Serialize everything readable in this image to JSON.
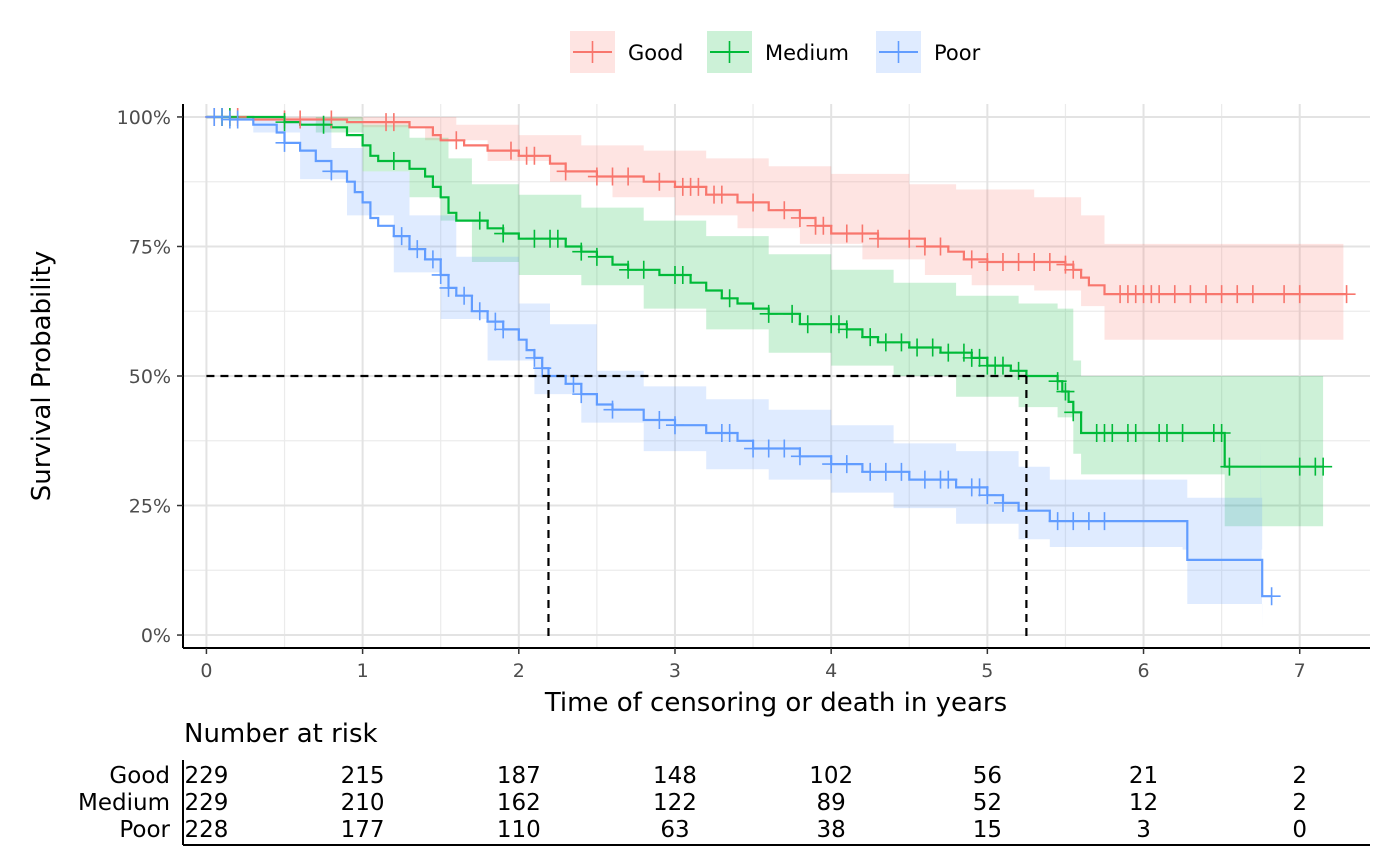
{
  "chart_data": {
    "type": "line",
    "subtype": "kaplan-meier survival curve with confidence bands and censor marks",
    "xlabel": "Time of censoring or death in years",
    "ylabel": "Survival Probability",
    "xlim": [
      -0.15,
      7.45
    ],
    "ylim": [
      -0.025,
      1.025
    ],
    "x_ticks": [
      0,
      1,
      2,
      3,
      4,
      5,
      6,
      7
    ],
    "x_tick_labels": [
      "0",
      "1",
      "2",
      "3",
      "4",
      "5",
      "6",
      "7"
    ],
    "y_ticks": [
      0,
      0.25,
      0.5,
      0.75,
      1.0
    ],
    "y_tick_labels": [
      "0%",
      "25%",
      "50%",
      "75%",
      "100%"
    ],
    "grid": true,
    "legend_position": "top",
    "median_lines": [
      {
        "x": 2.19,
        "y": 0.5
      },
      {
        "x": 5.25,
        "y": 0.5
      }
    ],
    "series": [
      {
        "name": "Good",
        "color": "#F8766D",
        "steps": [
          [
            0,
            1.0
          ],
          [
            0.3,
            0.995
          ],
          [
            0.9,
            0.99
          ],
          [
            1.3,
            0.98
          ],
          [
            1.45,
            0.965
          ],
          [
            1.5,
            0.955
          ],
          [
            1.65,
            0.945
          ],
          [
            1.8,
            0.935
          ],
          [
            2.0,
            0.925
          ],
          [
            2.2,
            0.91
          ],
          [
            2.3,
            0.895
          ],
          [
            2.5,
            0.885
          ],
          [
            2.8,
            0.875
          ],
          [
            3.0,
            0.865
          ],
          [
            3.2,
            0.85
          ],
          [
            3.4,
            0.835
          ],
          [
            3.6,
            0.82
          ],
          [
            3.8,
            0.805
          ],
          [
            3.9,
            0.79
          ],
          [
            4.0,
            0.775
          ],
          [
            4.3,
            0.765
          ],
          [
            4.6,
            0.75
          ],
          [
            4.75,
            0.74
          ],
          [
            4.85,
            0.725
          ],
          [
            5.0,
            0.72
          ],
          [
            5.5,
            0.715
          ],
          [
            5.55,
            0.705
          ],
          [
            5.6,
            0.69
          ],
          [
            5.65,
            0.675
          ],
          [
            5.75,
            0.658
          ],
          [
            7.3,
            0.658
          ]
        ],
        "upper": [
          [
            0,
            1.0
          ],
          [
            1.3,
            1.0
          ],
          [
            1.6,
            0.985
          ],
          [
            2.0,
            0.965
          ],
          [
            2.4,
            0.945
          ],
          [
            2.8,
            0.935
          ],
          [
            3.2,
            0.92
          ],
          [
            3.6,
            0.905
          ],
          [
            4.0,
            0.89
          ],
          [
            4.5,
            0.87
          ],
          [
            4.8,
            0.86
          ],
          [
            5.3,
            0.845
          ],
          [
            5.6,
            0.81
          ],
          [
            5.75,
            0.755
          ],
          [
            7.28,
            0.755
          ]
        ],
        "lower": [
          [
            0,
            1.0
          ],
          [
            0.5,
            0.995
          ],
          [
            1.0,
            0.98
          ],
          [
            1.4,
            0.955
          ],
          [
            1.8,
            0.915
          ],
          [
            2.2,
            0.875
          ],
          [
            2.6,
            0.845
          ],
          [
            3.0,
            0.81
          ],
          [
            3.4,
            0.785
          ],
          [
            3.8,
            0.755
          ],
          [
            4.2,
            0.725
          ],
          [
            4.6,
            0.695
          ],
          [
            4.9,
            0.675
          ],
          [
            5.3,
            0.665
          ],
          [
            5.6,
            0.635
          ],
          [
            5.75,
            0.57
          ],
          [
            7.28,
            0.57
          ]
        ],
        "censor_times": [
          0.05,
          0.1,
          0.15,
          0.2,
          0.5,
          0.6,
          0.8,
          1.15,
          1.2,
          1.6,
          1.95,
          2.05,
          2.1,
          2.3,
          2.5,
          2.6,
          2.7,
          2.9,
          3.05,
          3.1,
          3.15,
          3.25,
          3.3,
          3.5,
          3.7,
          3.8,
          3.9,
          3.95,
          4.1,
          4.2,
          4.3,
          4.5,
          4.6,
          4.7,
          4.9,
          5.0,
          5.1,
          5.2,
          5.3,
          5.4,
          5.5,
          5.55,
          5.85,
          5.9,
          5.95,
          6.0,
          6.05,
          6.1,
          6.2,
          6.3,
          6.4,
          6.5,
          6.6,
          6.7,
          6.9,
          7.0,
          7.3
        ],
        "risk_table": [
          229,
          215,
          187,
          148,
          102,
          56,
          21,
          2
        ]
      },
      {
        "name": "Medium",
        "color": "#00BA38",
        "steps": [
          [
            0,
            1.0
          ],
          [
            0.5,
            0.99
          ],
          [
            0.6,
            0.985
          ],
          [
            0.8,
            0.98
          ],
          [
            0.9,
            0.965
          ],
          [
            1.0,
            0.945
          ],
          [
            1.05,
            0.925
          ],
          [
            1.1,
            0.915
          ],
          [
            1.3,
            0.9
          ],
          [
            1.4,
            0.885
          ],
          [
            1.45,
            0.865
          ],
          [
            1.5,
            0.845
          ],
          [
            1.55,
            0.815
          ],
          [
            1.6,
            0.8
          ],
          [
            1.8,
            0.785
          ],
          [
            1.9,
            0.775
          ],
          [
            2.0,
            0.765
          ],
          [
            2.3,
            0.75
          ],
          [
            2.4,
            0.74
          ],
          [
            2.5,
            0.73
          ],
          [
            2.6,
            0.715
          ],
          [
            2.7,
            0.705
          ],
          [
            2.9,
            0.695
          ],
          [
            3.1,
            0.68
          ],
          [
            3.2,
            0.665
          ],
          [
            3.3,
            0.65
          ],
          [
            3.4,
            0.64
          ],
          [
            3.5,
            0.63
          ],
          [
            3.6,
            0.62
          ],
          [
            3.8,
            0.6
          ],
          [
            4.1,
            0.59
          ],
          [
            4.2,
            0.575
          ],
          [
            4.3,
            0.565
          ],
          [
            4.5,
            0.555
          ],
          [
            4.7,
            0.545
          ],
          [
            4.9,
            0.535
          ],
          [
            5.0,
            0.52
          ],
          [
            5.15,
            0.51
          ],
          [
            5.25,
            0.5
          ],
          [
            5.45,
            0.49
          ],
          [
            5.48,
            0.47
          ],
          [
            5.52,
            0.45
          ],
          [
            5.55,
            0.43
          ],
          [
            5.6,
            0.39
          ],
          [
            6.5,
            0.39
          ],
          [
            6.52,
            0.325
          ],
          [
            7.15,
            0.325
          ]
        ],
        "upper": [
          [
            0,
            1.0
          ],
          [
            0.8,
            1.0
          ],
          [
            1.0,
            0.985
          ],
          [
            1.3,
            0.96
          ],
          [
            1.55,
            0.92
          ],
          [
            1.7,
            0.87
          ],
          [
            2.0,
            0.85
          ],
          [
            2.4,
            0.825
          ],
          [
            2.8,
            0.8
          ],
          [
            3.2,
            0.77
          ],
          [
            3.6,
            0.735
          ],
          [
            4.0,
            0.705
          ],
          [
            4.4,
            0.68
          ],
          [
            4.8,
            0.655
          ],
          [
            5.2,
            0.64
          ],
          [
            5.45,
            0.63
          ],
          [
            5.55,
            0.53
          ],
          [
            5.6,
            0.5
          ],
          [
            7.15,
            0.5
          ]
        ],
        "lower": [
          [
            0,
            1.0
          ],
          [
            0.7,
            0.97
          ],
          [
            1.0,
            0.895
          ],
          [
            1.3,
            0.845
          ],
          [
            1.5,
            0.8
          ],
          [
            1.7,
            0.72
          ],
          [
            2.0,
            0.695
          ],
          [
            2.4,
            0.675
          ],
          [
            2.8,
            0.63
          ],
          [
            3.2,
            0.59
          ],
          [
            3.6,
            0.545
          ],
          [
            4.0,
            0.52
          ],
          [
            4.4,
            0.5
          ],
          [
            4.8,
            0.46
          ],
          [
            5.2,
            0.44
          ],
          [
            5.45,
            0.42
          ],
          [
            5.55,
            0.35
          ],
          [
            5.6,
            0.31
          ],
          [
            6.5,
            0.31
          ],
          [
            6.52,
            0.21
          ],
          [
            7.15,
            0.21
          ]
        ],
        "censor_times": [
          0.1,
          0.15,
          0.5,
          0.75,
          1.2,
          1.75,
          1.9,
          2.1,
          2.2,
          2.25,
          2.4,
          2.5,
          2.7,
          2.8,
          3.0,
          3.05,
          3.35,
          3.6,
          3.75,
          3.85,
          4.0,
          4.05,
          4.1,
          4.25,
          4.35,
          4.45,
          4.55,
          4.65,
          4.75,
          4.85,
          4.9,
          4.95,
          5.0,
          5.05,
          5.1,
          5.2,
          5.45,
          5.5,
          5.55,
          5.7,
          5.75,
          5.8,
          5.9,
          5.95,
          6.1,
          6.15,
          6.25,
          6.45,
          6.5,
          6.55,
          7.0,
          7.1,
          7.15
        ],
        "risk_table": [
          229,
          210,
          162,
          122,
          89,
          52,
          12,
          2
        ]
      },
      {
        "name": "Poor",
        "color": "#619CFF",
        "steps": [
          [
            0,
            1.0
          ],
          [
            0.15,
            0.995
          ],
          [
            0.3,
            0.985
          ],
          [
            0.45,
            0.97
          ],
          [
            0.5,
            0.95
          ],
          [
            0.6,
            0.935
          ],
          [
            0.7,
            0.915
          ],
          [
            0.8,
            0.895
          ],
          [
            0.9,
            0.875
          ],
          [
            0.95,
            0.855
          ],
          [
            1.0,
            0.835
          ],
          [
            1.05,
            0.805
          ],
          [
            1.1,
            0.79
          ],
          [
            1.2,
            0.77
          ],
          [
            1.3,
            0.745
          ],
          [
            1.4,
            0.725
          ],
          [
            1.5,
            0.695
          ],
          [
            1.55,
            0.67
          ],
          [
            1.6,
            0.655
          ],
          [
            1.7,
            0.625
          ],
          [
            1.8,
            0.605
          ],
          [
            1.9,
            0.59
          ],
          [
            2.0,
            0.57
          ],
          [
            2.05,
            0.55
          ],
          [
            2.1,
            0.535
          ],
          [
            2.15,
            0.515
          ],
          [
            2.19,
            0.5
          ],
          [
            2.3,
            0.485
          ],
          [
            2.4,
            0.465
          ],
          [
            2.5,
            0.445
          ],
          [
            2.6,
            0.435
          ],
          [
            2.8,
            0.415
          ],
          [
            3.0,
            0.405
          ],
          [
            3.2,
            0.39
          ],
          [
            3.4,
            0.375
          ],
          [
            3.5,
            0.36
          ],
          [
            3.8,
            0.345
          ],
          [
            4.0,
            0.33
          ],
          [
            4.2,
            0.315
          ],
          [
            4.5,
            0.3
          ],
          [
            4.8,
            0.285
          ],
          [
            5.0,
            0.27
          ],
          [
            5.1,
            0.255
          ],
          [
            5.2,
            0.24
          ],
          [
            5.4,
            0.22
          ],
          [
            6.25,
            0.22
          ],
          [
            6.28,
            0.145
          ],
          [
            6.75,
            0.145
          ],
          [
            6.76,
            0.075
          ],
          [
            6.82,
            0.075
          ]
        ],
        "upper": [
          [
            0,
            1.0
          ],
          [
            0.5,
            0.995
          ],
          [
            0.8,
            0.94
          ],
          [
            1.0,
            0.895
          ],
          [
            1.3,
            0.81
          ],
          [
            1.6,
            0.73
          ],
          [
            2.0,
            0.64
          ],
          [
            2.2,
            0.6
          ],
          [
            2.5,
            0.51
          ],
          [
            2.8,
            0.48
          ],
          [
            3.2,
            0.455
          ],
          [
            3.6,
            0.435
          ],
          [
            4.0,
            0.405
          ],
          [
            4.4,
            0.37
          ],
          [
            4.8,
            0.355
          ],
          [
            5.2,
            0.325
          ],
          [
            5.4,
            0.3
          ],
          [
            6.25,
            0.3
          ],
          [
            6.28,
            0.265
          ],
          [
            6.75,
            0.265
          ],
          [
            6.76,
            0.165
          ],
          [
            6.75,
            0.375
          ]
        ],
        "lower": [
          [
            0,
            1.0
          ],
          [
            0.3,
            0.97
          ],
          [
            0.6,
            0.88
          ],
          [
            0.9,
            0.81
          ],
          [
            1.2,
            0.7
          ],
          [
            1.5,
            0.61
          ],
          [
            1.8,
            0.53
          ],
          [
            2.1,
            0.465
          ],
          [
            2.4,
            0.41
          ],
          [
            2.8,
            0.355
          ],
          [
            3.2,
            0.32
          ],
          [
            3.6,
            0.3
          ],
          [
            4.0,
            0.275
          ],
          [
            4.4,
            0.245
          ],
          [
            4.8,
            0.215
          ],
          [
            5.2,
            0.185
          ],
          [
            5.4,
            0.17
          ],
          [
            6.25,
            0.165
          ],
          [
            6.28,
            0.06
          ],
          [
            6.75,
            0.06
          ],
          [
            6.76,
            0.015
          ]
        ],
        "censor_times": [
          0.05,
          0.1,
          0.15,
          0.2,
          0.5,
          0.8,
          1.25,
          1.35,
          1.45,
          1.5,
          1.55,
          1.65,
          1.75,
          1.85,
          1.9,
          2.1,
          2.15,
          2.35,
          2.4,
          2.6,
          2.9,
          3.0,
          3.3,
          3.35,
          3.5,
          3.6,
          3.7,
          3.8,
          4.0,
          4.1,
          4.25,
          4.35,
          4.45,
          4.6,
          4.7,
          4.75,
          4.9,
          4.95,
          5.0,
          5.1,
          5.45,
          5.55,
          5.65,
          5.75,
          6.82
        ],
        "risk_table": [
          228,
          177,
          110,
          63,
          38,
          15,
          3,
          0
        ]
      }
    ],
    "risk_table": {
      "title": "Number at risk",
      "times": [
        0,
        1,
        2,
        3,
        4,
        5,
        6,
        7
      ]
    }
  }
}
